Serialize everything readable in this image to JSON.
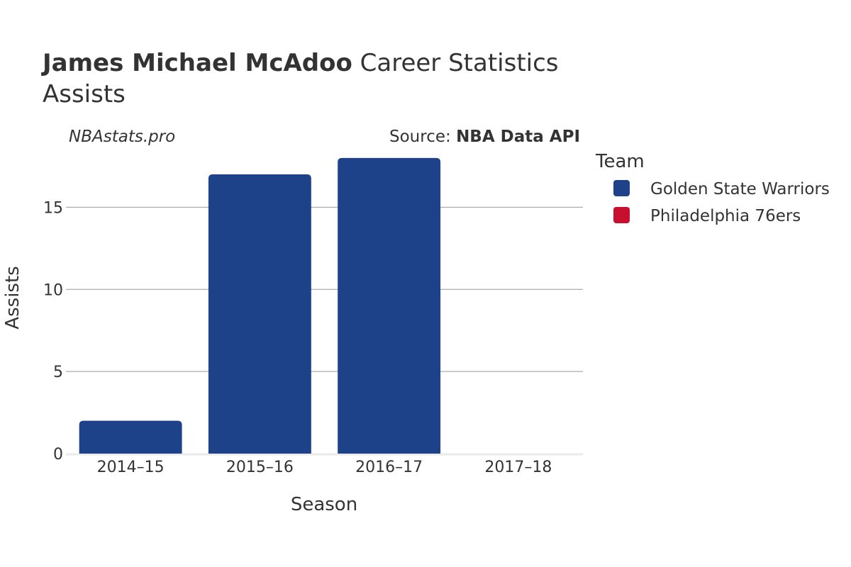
{
  "title": {
    "bold": "James Michael McAdoo",
    "rest": " Career Statistics",
    "subtitle": "Assists"
  },
  "credit": {
    "site": "NBAstats.pro",
    "source_prefix": "Source: ",
    "source_name": "NBA Data API"
  },
  "legend": {
    "title": "Team",
    "items": [
      {
        "label": "Golden State Warriors",
        "color": "#1d428a"
      },
      {
        "label": "Philadelphia 76ers",
        "color": "#c8102e"
      }
    ]
  },
  "chart_data": {
    "type": "bar",
    "categories": [
      "2014–15",
      "2015–16",
      "2016–17",
      "2017–18"
    ],
    "series": [
      {
        "name": "Golden State Warriors",
        "color": "#1d428a",
        "values": [
          2,
          17,
          18,
          0
        ]
      },
      {
        "name": "Philadelphia 76ers",
        "color": "#c8102e",
        "values": [
          0,
          0,
          0,
          0
        ]
      }
    ],
    "xlabel": "Season",
    "ylabel": "Assists",
    "yticks": [
      0,
      5,
      10,
      15
    ],
    "ylim": [
      0,
      18.9
    ],
    "grid": true,
    "legend_position": "right"
  }
}
